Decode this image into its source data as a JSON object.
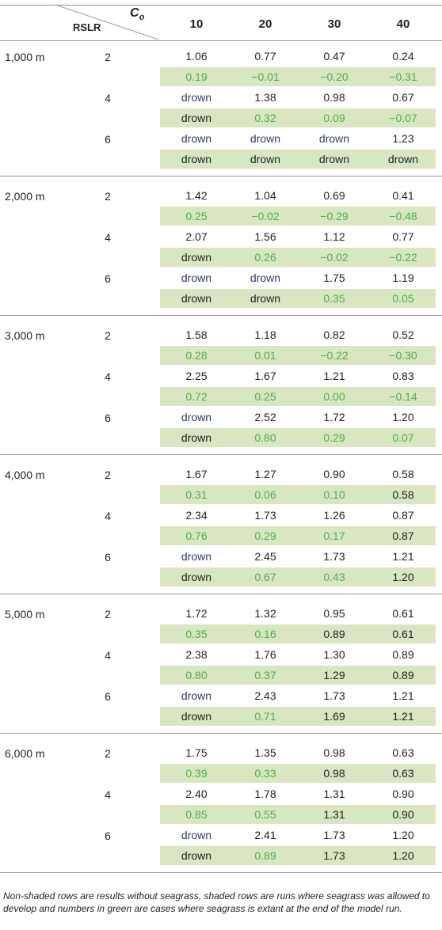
{
  "header": {
    "co_label": "C",
    "co_sub": "o",
    "rslr_label": "RSLR",
    "columns": [
      "10",
      "20",
      "30",
      "40"
    ]
  },
  "groups": [
    {
      "distance": "1,000 m",
      "rates": [
        {
          "rate": "2",
          "plain": [
            [
              "1.06",
              "n"
            ],
            [
              "0.77",
              "n"
            ],
            [
              "0.47",
              "n"
            ],
            [
              "0.24",
              "n"
            ]
          ],
          "shaded": [
            [
              "0.19",
              "g"
            ],
            [
              "−0.01",
              "g"
            ],
            [
              "−0.20",
              "g"
            ],
            [
              "−0.31",
              "g"
            ]
          ]
        },
        {
          "rate": "4",
          "plain": [
            [
              "drown",
              "d"
            ],
            [
              "1.38",
              "n"
            ],
            [
              "0.98",
              "n"
            ],
            [
              "0.67",
              "n"
            ]
          ],
          "shaded": [
            [
              "drown",
              "n"
            ],
            [
              "0.32",
              "g"
            ],
            [
              "0.09",
              "g"
            ],
            [
              "−0.07",
              "g"
            ]
          ]
        },
        {
          "rate": "6",
          "plain": [
            [
              "drown",
              "d"
            ],
            [
              "drown",
              "d"
            ],
            [
              "drown",
              "d"
            ],
            [
              "1.23",
              "n"
            ]
          ],
          "shaded": [
            [
              "drown",
              "n"
            ],
            [
              "drown",
              "n"
            ],
            [
              "drown",
              "n"
            ],
            [
              "drown",
              "n"
            ]
          ]
        }
      ]
    },
    {
      "distance": "2,000 m",
      "rates": [
        {
          "rate": "2",
          "plain": [
            [
              "1.42",
              "n"
            ],
            [
              "1.04",
              "n"
            ],
            [
              "0.69",
              "n"
            ],
            [
              "0.41",
              "n"
            ]
          ],
          "shaded": [
            [
              "0.25",
              "g"
            ],
            [
              "−0.02",
              "g"
            ],
            [
              "−0.29",
              "g"
            ],
            [
              "−0.48",
              "g"
            ]
          ]
        },
        {
          "rate": "4",
          "plain": [
            [
              "2.07",
              "n"
            ],
            [
              "1.56",
              "n"
            ],
            [
              "1.12",
              "n"
            ],
            [
              "0.77",
              "n"
            ]
          ],
          "shaded": [
            [
              "drown",
              "n"
            ],
            [
              "0.26",
              "g"
            ],
            [
              "−0.02",
              "g"
            ],
            [
              "−0.22",
              "g"
            ]
          ]
        },
        {
          "rate": "6",
          "plain": [
            [
              "drown",
              "d"
            ],
            [
              "drown",
              "d"
            ],
            [
              "1.75",
              "n"
            ],
            [
              "1.19",
              "n"
            ]
          ],
          "shaded": [
            [
              "drown",
              "n"
            ],
            [
              "drown",
              "n"
            ],
            [
              "0.35",
              "g"
            ],
            [
              "0.05",
              "g"
            ]
          ]
        }
      ]
    },
    {
      "distance": "3,000 m",
      "rates": [
        {
          "rate": "2",
          "plain": [
            [
              "1.58",
              "n"
            ],
            [
              "1.18",
              "n"
            ],
            [
              "0.82",
              "n"
            ],
            [
              "0.52",
              "n"
            ]
          ],
          "shaded": [
            [
              "0.28",
              "g"
            ],
            [
              "0.01",
              "g"
            ],
            [
              "−0.22",
              "g"
            ],
            [
              "−0.30",
              "g"
            ]
          ]
        },
        {
          "rate": "4",
          "plain": [
            [
              "2.25",
              "n"
            ],
            [
              "1.67",
              "n"
            ],
            [
              "1.21",
              "n"
            ],
            [
              "0.83",
              "n"
            ]
          ],
          "shaded": [
            [
              "0.72",
              "g"
            ],
            [
              "0.25",
              "g"
            ],
            [
              "0.00",
              "g"
            ],
            [
              "−0.14",
              "g"
            ]
          ]
        },
        {
          "rate": "6",
          "plain": [
            [
              "drown",
              "d"
            ],
            [
              "2.52",
              "n"
            ],
            [
              "1.72",
              "n"
            ],
            [
              "1.20",
              "n"
            ]
          ],
          "shaded": [
            [
              "drown",
              "n"
            ],
            [
              "0.80",
              "g"
            ],
            [
              "0.29",
              "g"
            ],
            [
              "0.07",
              "g"
            ]
          ]
        }
      ]
    },
    {
      "distance": "4,000 m",
      "rates": [
        {
          "rate": "2",
          "plain": [
            [
              "1.67",
              "n"
            ],
            [
              "1.27",
              "n"
            ],
            [
              "0.90",
              "n"
            ],
            [
              "0.58",
              "n"
            ]
          ],
          "shaded": [
            [
              "0.31",
              "g"
            ],
            [
              "0.06",
              "g"
            ],
            [
              "0.10",
              "g"
            ],
            [
              "0.58",
              "n"
            ]
          ]
        },
        {
          "rate": "4",
          "plain": [
            [
              "2.34",
              "n"
            ],
            [
              "1.73",
              "n"
            ],
            [
              "1.26",
              "n"
            ],
            [
              "0.87",
              "n"
            ]
          ],
          "shaded": [
            [
              "0.76",
              "g"
            ],
            [
              "0.29",
              "g"
            ],
            [
              "0.17",
              "g"
            ],
            [
              "0.87",
              "n"
            ]
          ]
        },
        {
          "rate": "6",
          "plain": [
            [
              "drown",
              "d"
            ],
            [
              "2.45",
              "n"
            ],
            [
              "1.73",
              "n"
            ],
            [
              "1.21",
              "n"
            ]
          ],
          "shaded": [
            [
              "drown",
              "n"
            ],
            [
              "0.67",
              "g"
            ],
            [
              "0.43",
              "g"
            ],
            [
              "1.20",
              "n"
            ]
          ]
        }
      ]
    },
    {
      "distance": "5,000 m",
      "rates": [
        {
          "rate": "2",
          "plain": [
            [
              "1.72",
              "n"
            ],
            [
              "1.32",
              "n"
            ],
            [
              "0.95",
              "n"
            ],
            [
              "0.61",
              "n"
            ]
          ],
          "shaded": [
            [
              "0.35",
              "g"
            ],
            [
              "0.16",
              "g"
            ],
            [
              "0.89",
              "n"
            ],
            [
              "0.61",
              "n"
            ]
          ]
        },
        {
          "rate": "4",
          "plain": [
            [
              "2.38",
              "n"
            ],
            [
              "1.76",
              "n"
            ],
            [
              "1.30",
              "n"
            ],
            [
              "0.89",
              "n"
            ]
          ],
          "shaded": [
            [
              "0.80",
              "g"
            ],
            [
              "0.37",
              "g"
            ],
            [
              "1.29",
              "n"
            ],
            [
              "0.89",
              "n"
            ]
          ]
        },
        {
          "rate": "6",
          "plain": [
            [
              "drown",
              "d"
            ],
            [
              "2.43",
              "n"
            ],
            [
              "1.73",
              "n"
            ],
            [
              "1.21",
              "n"
            ]
          ],
          "shaded": [
            [
              "drown",
              "n"
            ],
            [
              "0.71",
              "g"
            ],
            [
              "1.69",
              "n"
            ],
            [
              "1.21",
              "n"
            ]
          ]
        }
      ]
    },
    {
      "distance": "6,000 m",
      "rates": [
        {
          "rate": "2",
          "plain": [
            [
              "1.75",
              "n"
            ],
            [
              "1.35",
              "n"
            ],
            [
              "0.98",
              "n"
            ],
            [
              "0.63",
              "n"
            ]
          ],
          "shaded": [
            [
              "0.39",
              "g"
            ],
            [
              "0.33",
              "g"
            ],
            [
              "0.98",
              "n"
            ],
            [
              "0.63",
              "n"
            ]
          ]
        },
        {
          "rate": "4",
          "plain": [
            [
              "2.40",
              "n"
            ],
            [
              "1.78",
              "n"
            ],
            [
              "1.31",
              "n"
            ],
            [
              "0.90",
              "n"
            ]
          ],
          "shaded": [
            [
              "0.85",
              "g"
            ],
            [
              "0.55",
              "g"
            ],
            [
              "1.31",
              "n"
            ],
            [
              "0.90",
              "n"
            ]
          ]
        },
        {
          "rate": "6",
          "plain": [
            [
              "drown",
              "d"
            ],
            [
              "2.41",
              "n"
            ],
            [
              "1.73",
              "n"
            ],
            [
              "1.20",
              "n"
            ]
          ],
          "shaded": [
            [
              "drown",
              "n"
            ],
            [
              "0.89",
              "g"
            ],
            [
              "1.73",
              "n"
            ],
            [
              "1.20",
              "n"
            ]
          ]
        }
      ]
    }
  ],
  "footnote": "Non-shaded rows are results without seagrass, shaded rows are runs where seagrass was allowed to develop and numbers in green are cases where seagrass is extant at the end of the model run.",
  "colors": {
    "shade": "#d8e6c1",
    "green_text": "#4fae48",
    "drown_text": "#2e3a6e",
    "rule": "#9a9a9a"
  }
}
